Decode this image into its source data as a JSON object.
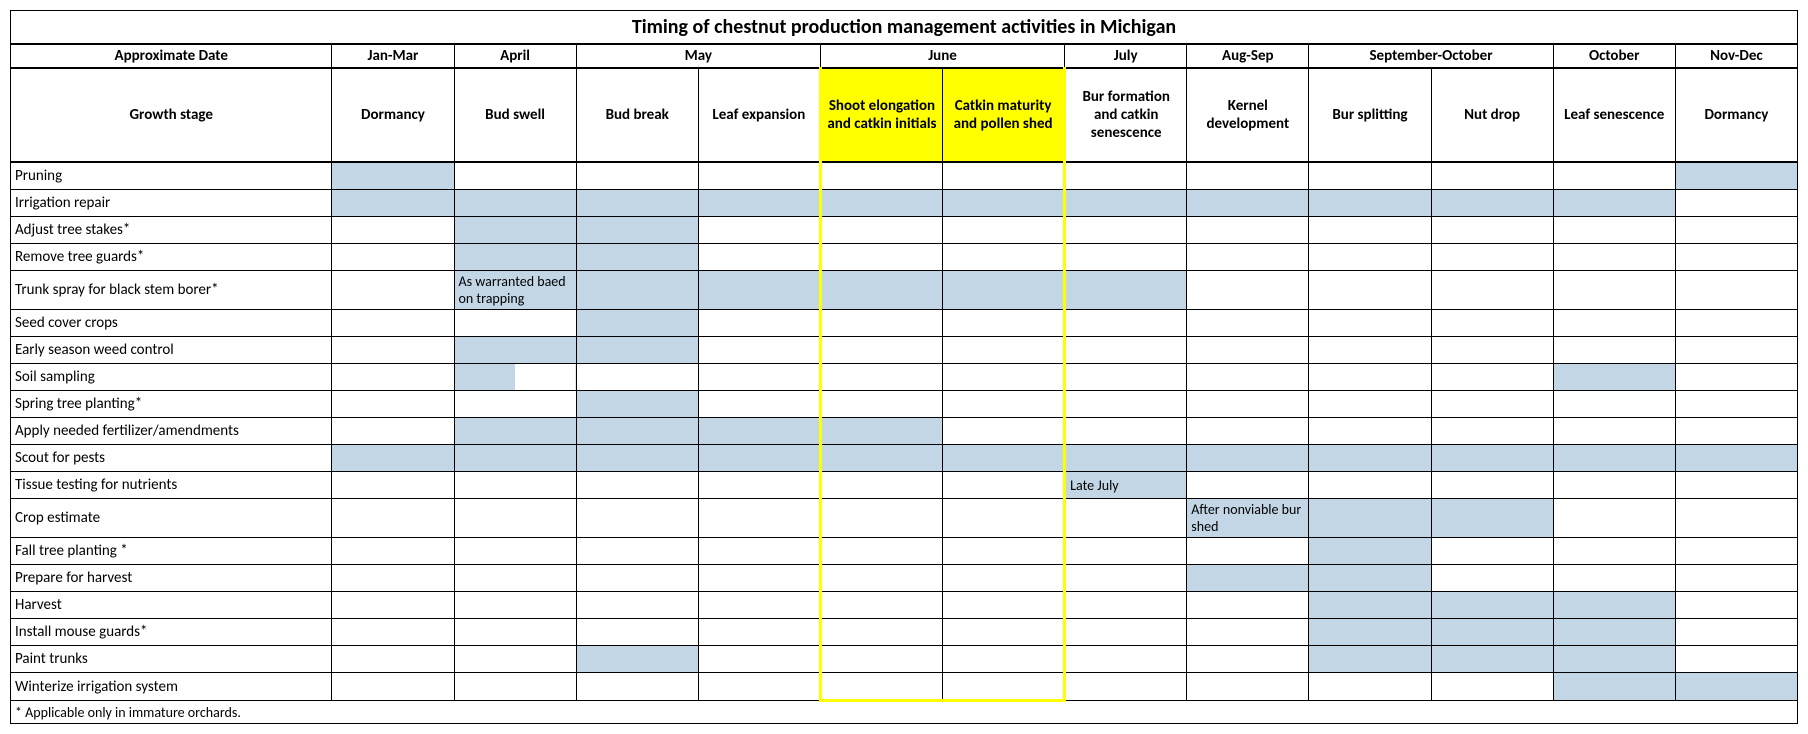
{
  "title": "Timing of chestnut production management activities in Michigan",
  "colors": {
    "shade": "#c2d6e6",
    "highlight": "#ffff00"
  },
  "dateHeaders": {
    "label": "Approximate Date",
    "cols": [
      "Jan-Mar",
      "April",
      "May",
      "June",
      "July",
      "Aug-Sep",
      "September-October",
      "October",
      "Nov-Dec"
    ]
  },
  "growthStage": {
    "label": "Growth stage",
    "cols": [
      "Dormancy",
      "Bud swell",
      "Bud break",
      "Leaf expansion",
      "Shoot elongation and catkin initials",
      "Catkin maturity and pollen shed",
      "Bur formation and catkin senescence",
      "Kernel development",
      "Bur splitting",
      "Nut drop",
      "Leaf senescence",
      "Dormancy"
    ]
  },
  "activities": [
    {
      "label": "Pruning",
      "shade": [
        1,
        12
      ]
    },
    {
      "label": "Irrigation repair",
      "shade": [
        1,
        2,
        3,
        4,
        5,
        6,
        7,
        8,
        9,
        10,
        11
      ]
    },
    {
      "label": "Adjust tree stakes*",
      "shade": [
        2,
        3
      ]
    },
    {
      "label": "Remove tree guards*",
      "shade": [
        2,
        3
      ]
    },
    {
      "label": "Trunk spray for black stem borer*",
      "shade": [
        2,
        3,
        4,
        5,
        6,
        7
      ],
      "note": {
        "col": 2,
        "text": "As warranted baed on trapping"
      }
    },
    {
      "label": "Seed cover crops",
      "shade": [
        3
      ]
    },
    {
      "label": "Early season weed control",
      "shade": [
        2,
        3
      ]
    },
    {
      "label": "Soil sampling",
      "shade": [
        2,
        11
      ],
      "halfShade": [
        2
      ]
    },
    {
      "label": "Spring tree planting*",
      "shade": [
        3
      ]
    },
    {
      "label": "Apply needed fertilizer/amendments",
      "shade": [
        2,
        3,
        4,
        5
      ]
    },
    {
      "label": "Scout for pests",
      "shade": [
        1,
        2,
        3,
        4,
        5,
        6,
        7,
        8,
        9,
        10,
        11,
        12
      ]
    },
    {
      "label": "Tissue testing for nutrients",
      "shade": [
        7
      ],
      "note": {
        "col": 7,
        "text": "Late July"
      }
    },
    {
      "label": "Crop estimate",
      "shade": [
        8,
        9,
        10
      ],
      "note": {
        "col": 8,
        "text": "After nonviable bur shed"
      }
    },
    {
      "label": "Fall tree planting *",
      "shade": [
        9
      ]
    },
    {
      "label": "Prepare for harvest",
      "shade": [
        8,
        9
      ]
    },
    {
      "label": "Harvest",
      "shade": [
        9,
        10,
        11
      ]
    },
    {
      "label": "Install mouse guards*",
      "shade": [
        9,
        10,
        11
      ]
    },
    {
      "label": "Paint trunks",
      "shade": [
        3,
        9,
        10,
        11
      ]
    },
    {
      "label": "Winterize irrigation system",
      "shade": [
        11,
        12
      ],
      "yellowBottom": true
    }
  ],
  "footnote": "* Applicable only in immature orchards."
}
